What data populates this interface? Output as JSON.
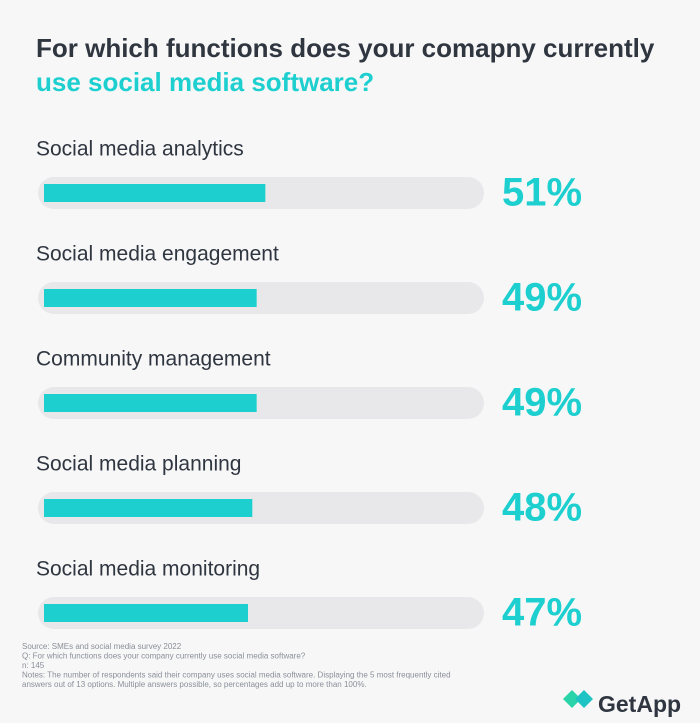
{
  "chart_data": {
    "type": "bar",
    "orientation": "horizontal",
    "title": "For which functions does your comapny currently",
    "title_highlight": "use social media software?",
    "categories": [
      "Social media analytics",
      "Social media engagement",
      "Community management",
      "Social media planning",
      "Social media monitoring"
    ],
    "values": [
      51,
      49,
      49,
      48,
      47
    ],
    "value_labels": [
      "51%",
      "49%",
      "49%",
      "48%",
      "47%"
    ],
    "color": "#1dcfcf",
    "xlim": [
      0,
      100
    ],
    "footnotes": [
      "Source: SMEs and social media survey 2022",
      "Q: For which functions does your company currently use social media software?",
      "n: 145",
      "Notes: The number of respondents said their company uses social media software. Displaying the 5 most frequently cited",
      "answers out of 13 options. Multiple answers possible, so percentages add up to more than 100%."
    ],
    "logo": "GetApp"
  }
}
